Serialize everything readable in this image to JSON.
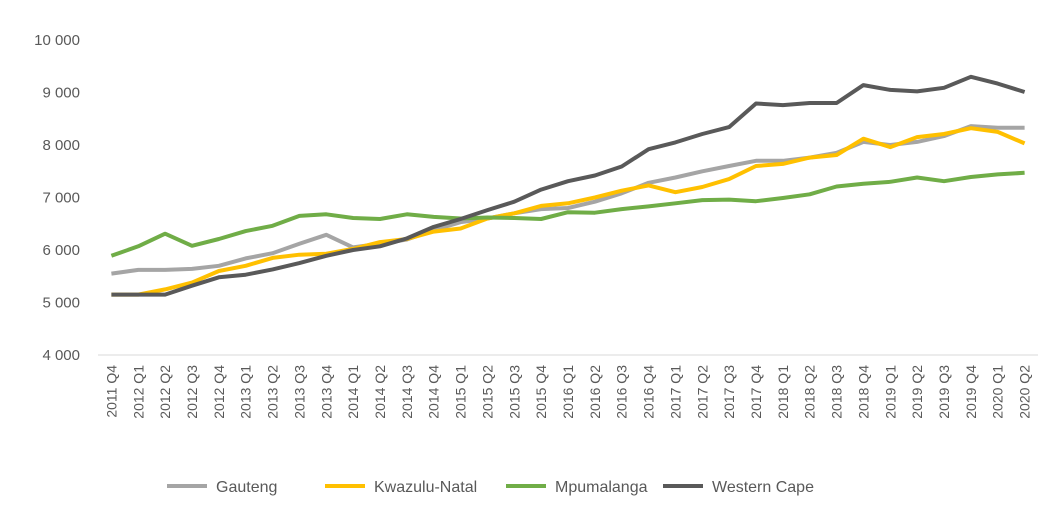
{
  "chart_data": {
    "type": "line",
    "title": "",
    "xlabel": "",
    "ylabel": "",
    "ylim": [
      4000,
      10000
    ],
    "yticks": [
      4000,
      5000,
      6000,
      7000,
      8000,
      9000,
      10000
    ],
    "ytick_labels": [
      "4 000",
      "5 000",
      "6 000",
      "7 000",
      "8 000",
      "9 000",
      "10 000"
    ],
    "grid": false,
    "legend_position": "bottom",
    "categories": [
      "2011 Q4",
      "2012 Q1",
      "2012 Q2",
      "2012 Q3",
      "2012 Q4",
      "2013 Q1",
      "2013 Q2",
      "2013 Q3",
      "2013 Q4",
      "2014 Q1",
      "2014 Q2",
      "2014 Q3",
      "2014 Q4",
      "2015 Q1",
      "2015 Q2",
      "2015 Q3",
      "2015 Q4",
      "2016 Q1",
      "2016 Q2",
      "2016 Q3",
      "2016 Q4",
      "2017 Q1",
      "2017 Q2",
      "2017 Q3",
      "2017 Q4",
      "2018 Q1",
      "2018 Q2",
      "2018 Q3",
      "2018 Q4",
      "2019 Q1",
      "2019 Q2",
      "2019 Q3",
      "2019 Q4",
      "2020 Q1",
      "2020 Q2"
    ],
    "series": [
      {
        "name": "Gauteng",
        "color": "#a5a5a5",
        "values": [
          5550,
          5620,
          5620,
          5640,
          5700,
          5840,
          5940,
          6120,
          6290,
          6050,
          6120,
          6200,
          6380,
          6530,
          6600,
          6700,
          6780,
          6800,
          6920,
          7080,
          7280,
          7380,
          7500,
          7600,
          7700,
          7700,
          7760,
          7850,
          8060,
          8000,
          8060,
          8170,
          8360,
          8330,
          8330
        ]
      },
      {
        "name": "Kwazulu-Natal",
        "color": "#ffc000",
        "values": [
          5150,
          5150,
          5250,
          5380,
          5600,
          5700,
          5850,
          5910,
          5930,
          6020,
          6150,
          6210,
          6350,
          6410,
          6600,
          6700,
          6840,
          6890,
          7000,
          7130,
          7230,
          7100,
          7200,
          7350,
          7600,
          7640,
          7760,
          7810,
          8120,
          7960,
          8150,
          8210,
          8320,
          8250,
          8030
        ]
      },
      {
        "name": "Mpumalanga",
        "color": "#70ad47",
        "values": [
          5890,
          6070,
          6310,
          6080,
          6210,
          6360,
          6460,
          6650,
          6680,
          6610,
          6590,
          6680,
          6630,
          6600,
          6620,
          6610,
          6590,
          6720,
          6710,
          6780,
          6830,
          6890,
          6950,
          6960,
          6930,
          6990,
          7060,
          7210,
          7260,
          7300,
          7380,
          7310,
          7390,
          7440,
          7470
        ]
      },
      {
        "name": "Western Cape",
        "color": "#595959",
        "values": [
          5150,
          5150,
          5150,
          5320,
          5480,
          5530,
          5630,
          5750,
          5890,
          6000,
          6070,
          6220,
          6440,
          6590,
          6760,
          6920,
          7150,
          7310,
          7420,
          7590,
          7920,
          8050,
          8210,
          8340,
          8790,
          8760,
          8800,
          8800,
          9140,
          9050,
          9020,
          9090,
          9300,
          9170,
          9010
        ]
      }
    ]
  }
}
